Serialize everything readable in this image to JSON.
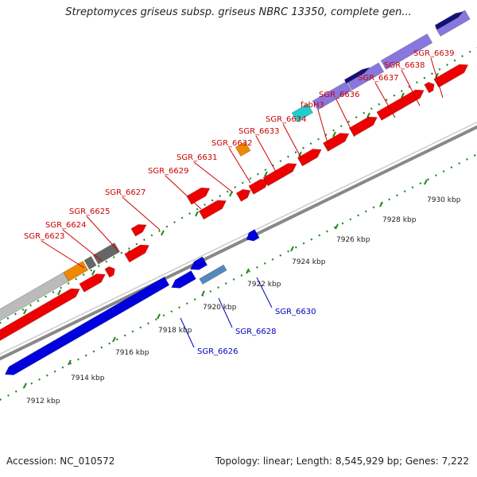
{
  "title": "Streptomyces griseus subsp. griseus NBRC 13350, complete gen...",
  "footer": {
    "accession": "Accession: NC_010572",
    "stats": "Topology: linear; Length: 8,545,929 bp; Genes: 7,222"
  },
  "colors": {
    "forward": "#ee0000",
    "reverse": "#0000dd",
    "forward_label": "#cc0000",
    "reverse_label": "#0000bb",
    "backbone": "#888888",
    "tick": "#228822",
    "cds_orange": "#ee8800",
    "cds_gray": "#666666",
    "cds_cyan": "#22cccc",
    "cds_purple": "#8877dd",
    "cds_navy": "#111177",
    "cds_steel": "#5588bb",
    "cds_silver": "#bbbbbb"
  },
  "scale": {
    "unit": "kbp",
    "tick_labels": [
      "7912 kbp",
      "7914 kbp",
      "7916 kbp",
      "7918 kbp",
      "7920 kbp",
      "7922 kbp",
      "7924 kbp",
      "7926 kbp",
      "7928 kbp",
      "7930 kbp"
    ]
  },
  "forward_labels": [
    "SGR_6623",
    "SGR_6624",
    "SGR_6625",
    "SGR_6627",
    "SGR_6629",
    "SGR_6631",
    "SGR_6632",
    "SGR_6633",
    "SGR_6634",
    "fabH3",
    "SGR_6636",
    "SGR_6637",
    "SGR_6638",
    "SGR_6639"
  ],
  "reverse_labels": [
    "SGR_6626",
    "SGR_6628",
    "SGR_6630"
  ]
}
